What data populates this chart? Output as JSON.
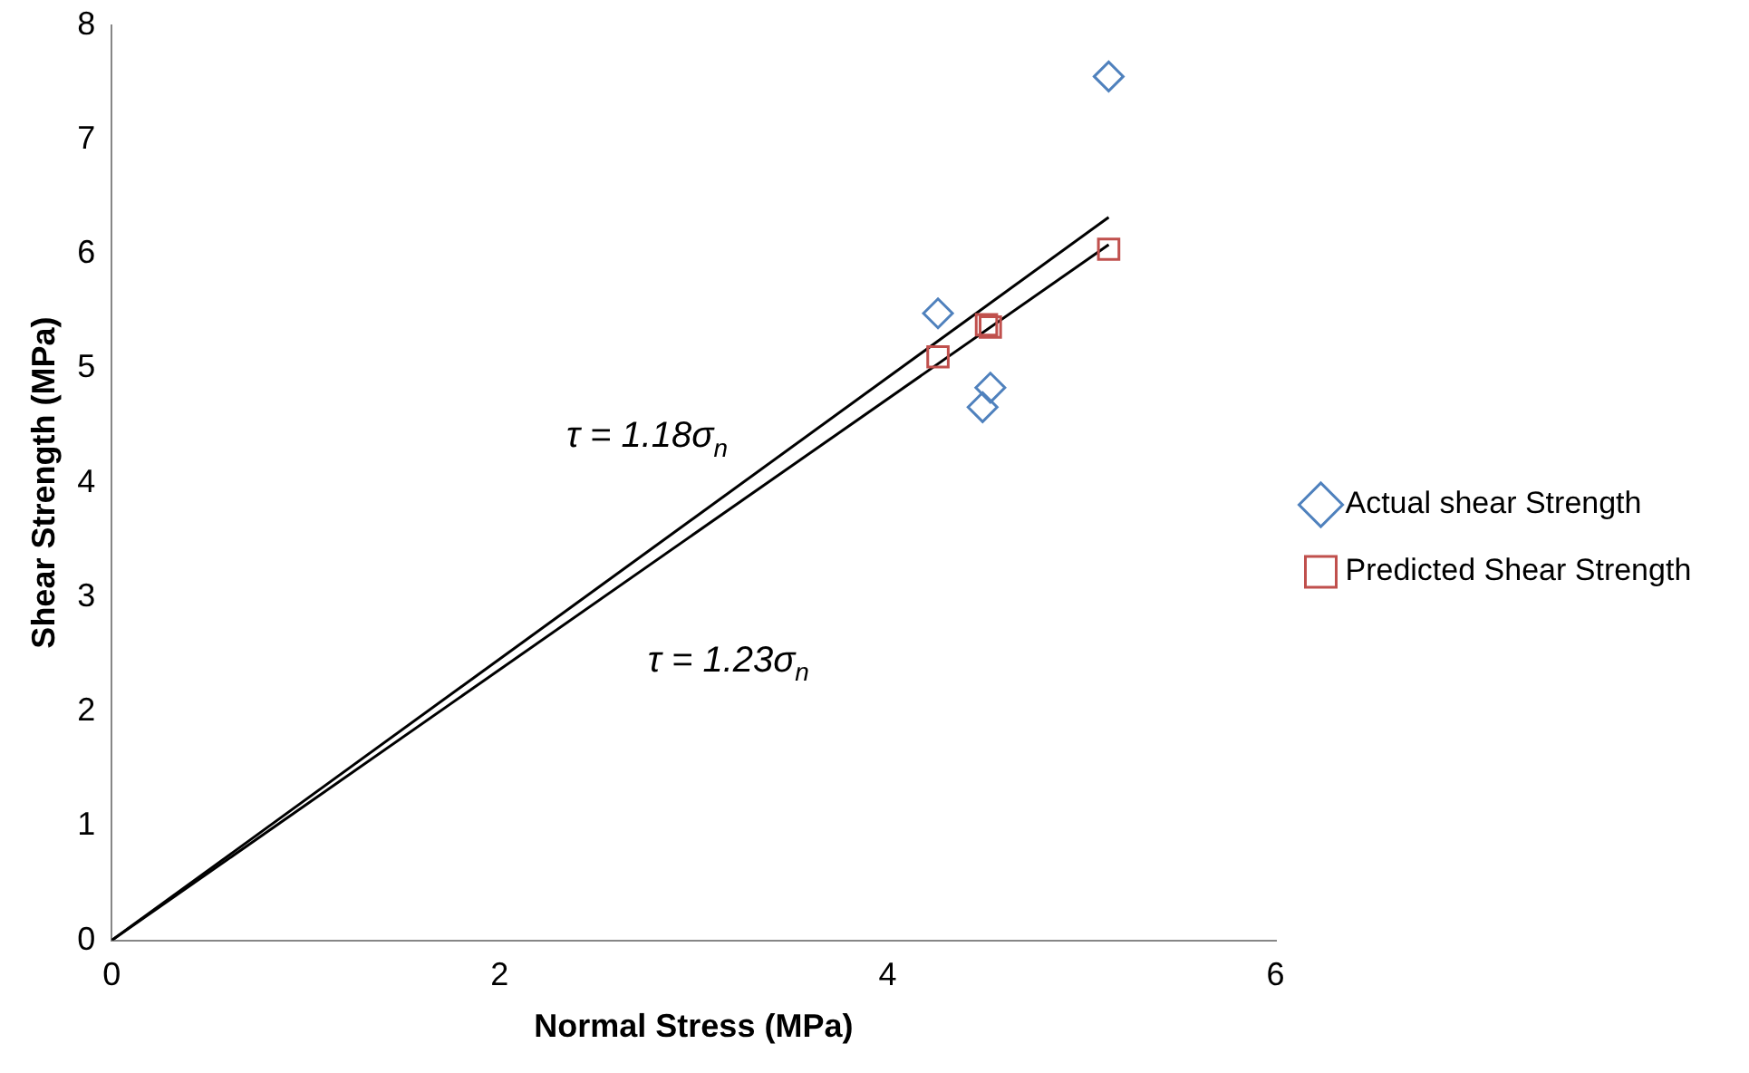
{
  "chart_data": {
    "type": "scatter",
    "xlabel": "Normal Stress (MPa)",
    "ylabel": "Shear Strength (MPa)",
    "xlim": [
      0,
      6
    ],
    "xticks": [
      0,
      2,
      4,
      6
    ],
    "ylim": [
      0,
      8
    ],
    "yticks": [
      0,
      1,
      2,
      3,
      4,
      5,
      6,
      7,
      8
    ],
    "grid": false,
    "legend": "right",
    "series": [
      {
        "name": "Actual shear Strength",
        "color": "#4f81bd",
        "marker": "diamond",
        "x": [
          5.14,
          4.26,
          4.53,
          4.49
        ],
        "values": [
          7.55,
          5.48,
          4.83,
          4.66
        ]
      },
      {
        "name": "Predicted Shear Strength",
        "color": "#c0504d",
        "marker": "square",
        "x": [
          5.14,
          4.26,
          4.51,
          4.53
        ],
        "values": [
          6.04,
          5.1,
          5.38,
          5.36
        ]
      },
      {
        "type": "line",
        "color": "#000000",
        "marker": "none",
        "x": [
          0,
          5.14
        ],
        "values": [
          0,
          6.32
        ]
      },
      {
        "type": "line",
        "color": "#000000",
        "marker": "none",
        "x": [
          0,
          5.14
        ],
        "values": [
          0,
          6.08
        ]
      }
    ],
    "annotations": [
      "τ = 1.18σ$_{n}$",
      "τ = 1.23σ$_{n}$"
    ]
  }
}
